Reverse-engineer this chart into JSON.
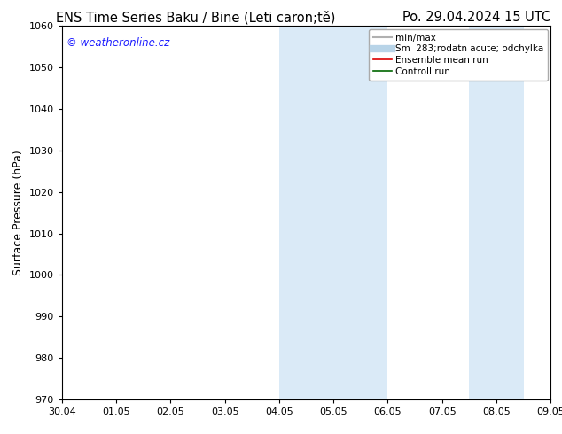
{
  "title_left": "ENS Time Series Baku / Bine (Leti caron;tě)",
  "title_right": "Po. 29.04.2024 15 UTC",
  "ylabel": "Surface Pressure (hPa)",
  "ylim": [
    970,
    1060
  ],
  "yticks": [
    970,
    980,
    990,
    1000,
    1010,
    1020,
    1030,
    1040,
    1050,
    1060
  ],
  "xlim": [
    0,
    9
  ],
  "xtick_labels": [
    "30.04",
    "01.05",
    "02.05",
    "03.05",
    "04.05",
    "05.05",
    "06.05",
    "07.05",
    "08.05",
    "09.05"
  ],
  "xtick_positions": [
    0,
    1,
    2,
    3,
    4,
    5,
    6,
    7,
    8,
    9
  ],
  "shaded_regions": [
    {
      "xmin": 4.0,
      "xmax": 6.0,
      "color": "#daeaf7"
    },
    {
      "xmin": 7.5,
      "xmax": 8.5,
      "color": "#daeaf7"
    }
  ],
  "watermark": "© weatheronline.cz",
  "watermark_color": "#1a1aff",
  "legend_entries": [
    {
      "label": "min/max",
      "color": "#b0b0b0",
      "lw": 1.5,
      "style": "-"
    },
    {
      "label": "Sm  283;rodatn acute; odchylka",
      "color": "#b8d4e8",
      "lw": 6,
      "style": "-"
    },
    {
      "label": "Ensemble mean run",
      "color": "#dd0000",
      "lw": 1.2,
      "style": "-"
    },
    {
      "label": "Controll run",
      "color": "#006600",
      "lw": 1.2,
      "style": "-"
    }
  ],
  "bg_color": "#ffffff",
  "title_fontsize": 10.5,
  "tick_fontsize": 8,
  "ylabel_fontsize": 9,
  "legend_fontsize": 7.5
}
